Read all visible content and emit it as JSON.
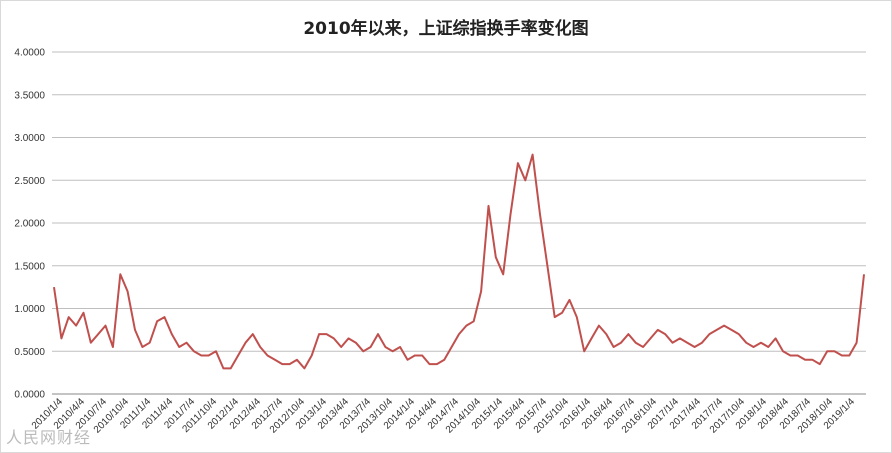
{
  "chart_data": {
    "type": "line",
    "title": "2010年以来，上证综指换手率变化图",
    "xlabel": "",
    "ylabel": "",
    "ylim": [
      0,
      4
    ],
    "yticks": [
      "0.0000",
      "0.5000",
      "1.0000",
      "1.5000",
      "2.0000",
      "2.5000",
      "3.0000",
      "3.5000",
      "4.0000"
    ],
    "grid": true,
    "legend": "none",
    "line_color": "#c0504d",
    "x_tick_labels": [
      "2010/1/4",
      "2010/4/4",
      "2010/7/4",
      "2010/10/4",
      "2011/1/4",
      "2011/4/4",
      "2011/7/4",
      "2011/10/4",
      "2012/1/4",
      "2012/4/4",
      "2012/7/4",
      "2012/10/4",
      "2013/1/4",
      "2013/4/4",
      "2013/7/4",
      "2013/10/4",
      "2014/1/4",
      "2014/4/4",
      "2014/7/4",
      "2014/10/4",
      "2015/1/4",
      "2015/4/4",
      "2015/7/4",
      "2015/10/4",
      "2016/1/4",
      "2016/4/4",
      "2016/7/4",
      "2016/10/4",
      "2017/1/4",
      "2017/4/4",
      "2017/7/4",
      "2017/10/4",
      "2018/1/4",
      "2018/4/4",
      "2018/7/4",
      "2018/10/4",
      "2019/1/4"
    ],
    "series": [
      {
        "x": [
          "2010/01",
          "2010/02",
          "2010/03",
          "2010/04",
          "2010/05",
          "2010/06",
          "2010/07",
          "2010/08",
          "2010/09",
          "2010/10",
          "2010/11",
          "2010/12",
          "2011/01",
          "2011/02",
          "2011/03",
          "2011/04",
          "2011/05",
          "2011/06",
          "2011/07",
          "2011/08",
          "2011/09",
          "2011/10",
          "2011/11",
          "2011/12",
          "2012/01",
          "2012/02",
          "2012/03",
          "2012/04",
          "2012/05",
          "2012/06",
          "2012/07",
          "2012/08",
          "2012/09",
          "2012/10",
          "2012/11",
          "2012/12",
          "2013/01",
          "2013/02",
          "2013/03",
          "2013/04",
          "2013/05",
          "2013/06",
          "2013/07",
          "2013/08",
          "2013/09",
          "2013/10",
          "2013/11",
          "2013/12",
          "2014/01",
          "2014/02",
          "2014/03",
          "2014/04",
          "2014/05",
          "2014/06",
          "2014/07",
          "2014/08",
          "2014/09",
          "2014/10",
          "2014/11",
          "2014/12",
          "2015/01",
          "2015/02",
          "2015/03",
          "2015/04",
          "2015/05",
          "2015/06",
          "2015/07",
          "2015/08",
          "2015/09",
          "2015/10",
          "2015/11",
          "2015/12",
          "2016/01",
          "2016/02",
          "2016/03",
          "2016/04",
          "2016/05",
          "2016/06",
          "2016/07",
          "2016/08",
          "2016/09",
          "2016/10",
          "2016/11",
          "2016/12",
          "2017/01",
          "2017/02",
          "2017/03",
          "2017/04",
          "2017/05",
          "2017/06",
          "2017/07",
          "2017/08",
          "2017/09",
          "2017/10",
          "2017/11",
          "2017/12",
          "2018/01",
          "2018/02",
          "2018/03",
          "2018/04",
          "2018/05",
          "2018/06",
          "2018/07",
          "2018/08",
          "2018/09",
          "2018/10",
          "2018/11",
          "2018/12",
          "2019/01",
          "2019/02",
          "2019/03"
        ],
        "values": [
          1.25,
          0.65,
          0.9,
          0.8,
          0.95,
          0.6,
          0.7,
          0.8,
          0.55,
          1.4,
          1.2,
          0.75,
          0.55,
          0.6,
          0.85,
          0.9,
          0.7,
          0.55,
          0.6,
          0.5,
          0.45,
          0.45,
          0.5,
          0.3,
          0.3,
          0.45,
          0.6,
          0.7,
          0.55,
          0.45,
          0.4,
          0.35,
          0.35,
          0.4,
          0.3,
          0.45,
          0.7,
          0.7,
          0.65,
          0.55,
          0.65,
          0.6,
          0.5,
          0.55,
          0.7,
          0.55,
          0.5,
          0.55,
          0.4,
          0.45,
          0.45,
          0.35,
          0.35,
          0.4,
          0.55,
          0.7,
          0.8,
          0.85,
          1.2,
          2.2,
          1.6,
          1.4,
          2.1,
          2.7,
          2.5,
          2.8,
          2.1,
          1.5,
          0.9,
          0.95,
          1.1,
          0.9,
          0.5,
          0.65,
          0.8,
          0.7,
          0.55,
          0.6,
          0.7,
          0.6,
          0.55,
          0.65,
          0.75,
          0.7,
          0.6,
          0.65,
          0.6,
          0.55,
          0.6,
          0.7,
          0.75,
          0.8,
          0.75,
          0.7,
          0.6,
          0.55,
          0.6,
          0.55,
          0.65,
          0.5,
          0.45,
          0.45,
          0.4,
          0.4,
          0.35,
          0.5,
          0.5,
          0.45,
          0.45,
          0.6,
          1.4
        ]
      }
    ]
  },
  "watermark": "人民网财经"
}
